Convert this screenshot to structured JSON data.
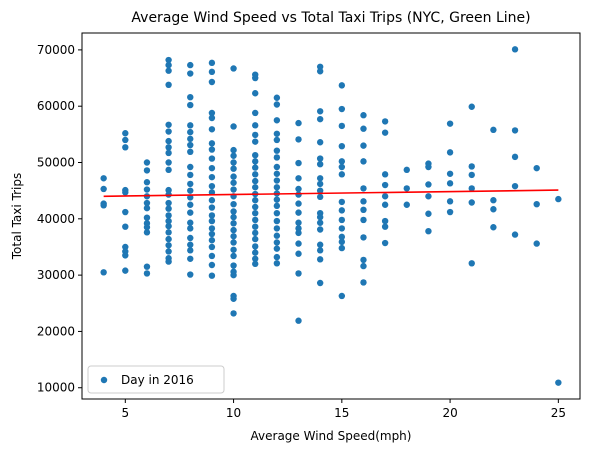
{
  "chart_data": {
    "type": "scatter",
    "title": "Average Wind Speed vs Total Taxi Trips (NYC, Green Line)",
    "xlabel": "Average Wind Speed(mph)",
    "ylabel": "Total Taxi Trips",
    "xlim": [
      3.0,
      26.0
    ],
    "ylim": [
      8000,
      73000
    ],
    "xticks": [
      5,
      10,
      15,
      20,
      25
    ],
    "yticks": [
      10000,
      20000,
      30000,
      40000,
      50000,
      60000,
      70000
    ],
    "xtick_labels": [
      "5",
      "10",
      "15",
      "20",
      "25"
    ],
    "ytick_labels": [
      "10000",
      "20000",
      "30000",
      "40000",
      "50000",
      "60000",
      "70000"
    ],
    "grid": false,
    "legend_position": "lower-left",
    "colors": {
      "points": "#1f77b4",
      "trend": "#ff0000"
    },
    "series": [
      {
        "name": "Day in 2016",
        "points": [
          [
            4,
            47200
          ],
          [
            4,
            45300
          ],
          [
            4,
            42700
          ],
          [
            4,
            42400
          ],
          [
            4,
            30500
          ],
          [
            5,
            55200
          ],
          [
            5,
            54000
          ],
          [
            5,
            52700
          ],
          [
            5,
            45100
          ],
          [
            5,
            44700
          ],
          [
            5,
            41200
          ],
          [
            5,
            38600
          ],
          [
            5,
            35000
          ],
          [
            5,
            34200
          ],
          [
            5,
            33500
          ],
          [
            5,
            30800
          ],
          [
            6,
            50000
          ],
          [
            6,
            48600
          ],
          [
            6,
            46500
          ],
          [
            6,
            45200
          ],
          [
            6,
            44000
          ],
          [
            6,
            42800
          ],
          [
            6,
            41900
          ],
          [
            6,
            40200
          ],
          [
            6,
            39200
          ],
          [
            6,
            38500
          ],
          [
            6,
            37600
          ],
          [
            6,
            31500
          ],
          [
            6,
            30300
          ],
          [
            7,
            68200
          ],
          [
            7,
            67300
          ],
          [
            7,
            66300
          ],
          [
            7,
            63800
          ],
          [
            7,
            56700
          ],
          [
            7,
            55500
          ],
          [
            7,
            53800
          ],
          [
            7,
            52700
          ],
          [
            7,
            51700
          ],
          [
            7,
            50000
          ],
          [
            7,
            48700
          ],
          [
            7,
            45100
          ],
          [
            7,
            44300
          ],
          [
            7,
            42800
          ],
          [
            7,
            41800
          ],
          [
            7,
            40600
          ],
          [
            7,
            39600
          ],
          [
            7,
            38700
          ],
          [
            7,
            37600
          ],
          [
            7,
            36400
          ],
          [
            7,
            35300
          ],
          [
            7,
            34200
          ],
          [
            7,
            33000
          ],
          [
            7,
            32400
          ],
          [
            8,
            67300
          ],
          [
            8,
            65800
          ],
          [
            8,
            61600
          ],
          [
            8,
            60200
          ],
          [
            8,
            56600
          ],
          [
            8,
            55400
          ],
          [
            8,
            54200
          ],
          [
            8,
            53100
          ],
          [
            8,
            51900
          ],
          [
            8,
            49200
          ],
          [
            8,
            47800
          ],
          [
            8,
            46200
          ],
          [
            8,
            45000
          ],
          [
            8,
            43800
          ],
          [
            8,
            42500
          ],
          [
            8,
            41100
          ],
          [
            8,
            39300
          ],
          [
            8,
            38300
          ],
          [
            8,
            36600
          ],
          [
            8,
            35400
          ],
          [
            8,
            34400
          ],
          [
            8,
            32900
          ],
          [
            8,
            30100
          ],
          [
            9,
            67700
          ],
          [
            9,
            66100
          ],
          [
            9,
            64300
          ],
          [
            9,
            58800
          ],
          [
            9,
            57900
          ],
          [
            9,
            55900
          ],
          [
            9,
            53400
          ],
          [
            9,
            52300
          ],
          [
            9,
            50700
          ],
          [
            9,
            49000
          ],
          [
            9,
            47400
          ],
          [
            9,
            45800
          ],
          [
            9,
            44700
          ],
          [
            9,
            43300
          ],
          [
            9,
            42000
          ],
          [
            9,
            40600
          ],
          [
            9,
            39600
          ],
          [
            9,
            38300
          ],
          [
            9,
            37300
          ],
          [
            9,
            36200
          ],
          [
            9,
            35000
          ],
          [
            9,
            33400
          ],
          [
            9,
            31800
          ],
          [
            9,
            29900
          ],
          [
            10,
            66700
          ],
          [
            10,
            56400
          ],
          [
            10,
            52200
          ],
          [
            10,
            51200
          ],
          [
            10,
            50000
          ],
          [
            10,
            48900
          ],
          [
            10,
            47500
          ],
          [
            10,
            46400
          ],
          [
            10,
            45200
          ],
          [
            10,
            44000
          ],
          [
            10,
            42600
          ],
          [
            10,
            41300
          ],
          [
            10,
            40300
          ],
          [
            10,
            39200
          ],
          [
            10,
            38000
          ],
          [
            10,
            36900
          ],
          [
            10,
            35800
          ],
          [
            10,
            34500
          ],
          [
            10,
            33400
          ],
          [
            10,
            31700
          ],
          [
            10,
            30600
          ],
          [
            10,
            30000
          ],
          [
            10,
            26300
          ],
          [
            10,
            25800
          ],
          [
            10,
            23200
          ],
          [
            11,
            65600
          ],
          [
            11,
            65000
          ],
          [
            11,
            62300
          ],
          [
            11,
            58800
          ],
          [
            11,
            56600
          ],
          [
            11,
            54900
          ],
          [
            11,
            53700
          ],
          [
            11,
            51300
          ],
          [
            11,
            50200
          ],
          [
            11,
            49100
          ],
          [
            11,
            47900
          ],
          [
            11,
            46700
          ],
          [
            11,
            45600
          ],
          [
            11,
            44400
          ],
          [
            11,
            43300
          ],
          [
            11,
            42100
          ],
          [
            11,
            41000
          ],
          [
            11,
            39800
          ],
          [
            11,
            38600
          ],
          [
            11,
            37500
          ],
          [
            11,
            36400
          ],
          [
            11,
            35100
          ],
          [
            11,
            34000
          ],
          [
            11,
            32900
          ],
          [
            11,
            32000
          ],
          [
            12,
            61500
          ],
          [
            12,
            60300
          ],
          [
            12,
            57500
          ],
          [
            12,
            55100
          ],
          [
            12,
            54000
          ],
          [
            12,
            52100
          ],
          [
            12,
            50900
          ],
          [
            12,
            49200
          ],
          [
            12,
            48000
          ],
          [
            12,
            46800
          ],
          [
            12,
            45600
          ],
          [
            12,
            44500
          ],
          [
            12,
            43400
          ],
          [
            12,
            42300
          ],
          [
            12,
            41000
          ],
          [
            12,
            39600
          ],
          [
            12,
            38300
          ],
          [
            12,
            37000
          ],
          [
            12,
            35800
          ],
          [
            12,
            34700
          ],
          [
            12,
            33200
          ],
          [
            12,
            32100
          ],
          [
            13,
            57000
          ],
          [
            13,
            54100
          ],
          [
            13,
            49900
          ],
          [
            13,
            47200
          ],
          [
            13,
            45300
          ],
          [
            13,
            44300
          ],
          [
            13,
            42700
          ],
          [
            13,
            41100
          ],
          [
            13,
            39300
          ],
          [
            13,
            38300
          ],
          [
            13,
            37500
          ],
          [
            13,
            35600
          ],
          [
            13,
            33800
          ],
          [
            13,
            30300
          ],
          [
            13,
            21900
          ],
          [
            14,
            67000
          ],
          [
            14,
            66200
          ],
          [
            14,
            59100
          ],
          [
            14,
            57700
          ],
          [
            14,
            53600
          ],
          [
            14,
            50700
          ],
          [
            14,
            49700
          ],
          [
            14,
            47200
          ],
          [
            14,
            46200
          ],
          [
            14,
            45000
          ],
          [
            14,
            43900
          ],
          [
            14,
            41000
          ],
          [
            14,
            40300
          ],
          [
            14,
            39300
          ],
          [
            14,
            38100
          ],
          [
            14,
            35400
          ],
          [
            14,
            34400
          ],
          [
            14,
            32800
          ],
          [
            14,
            28600
          ],
          [
            15,
            63700
          ],
          [
            15,
            59500
          ],
          [
            15,
            56500
          ],
          [
            15,
            52900
          ],
          [
            15,
            50200
          ],
          [
            15,
            49200
          ],
          [
            15,
            47900
          ],
          [
            15,
            43000
          ],
          [
            15,
            41500
          ],
          [
            15,
            39800
          ],
          [
            15,
            38300
          ],
          [
            15,
            36800
          ],
          [
            15,
            35900
          ],
          [
            15,
            34800
          ],
          [
            15,
            26300
          ],
          [
            16,
            58400
          ],
          [
            16,
            56000
          ],
          [
            16,
            53000
          ],
          [
            16,
            50200
          ],
          [
            16,
            45400
          ],
          [
            16,
            43100
          ],
          [
            16,
            41600
          ],
          [
            16,
            39800
          ],
          [
            16,
            36700
          ],
          [
            16,
            32700
          ],
          [
            16,
            31600
          ],
          [
            16,
            28700
          ],
          [
            17,
            57300
          ],
          [
            17,
            55300
          ],
          [
            17,
            47900
          ],
          [
            17,
            46000
          ],
          [
            17,
            44000
          ],
          [
            17,
            42500
          ],
          [
            17,
            39600
          ],
          [
            17,
            38600
          ],
          [
            17,
            35700
          ],
          [
            18,
            48700
          ],
          [
            18,
            45400
          ],
          [
            18,
            42500
          ],
          [
            19,
            49800
          ],
          [
            19,
            49200
          ],
          [
            19,
            46100
          ],
          [
            19,
            44000
          ],
          [
            19,
            40900
          ],
          [
            19,
            37800
          ],
          [
            20,
            56900
          ],
          [
            20,
            51800
          ],
          [
            20,
            48000
          ],
          [
            20,
            46300
          ],
          [
            20,
            43100
          ],
          [
            20,
            41200
          ],
          [
            21,
            59900
          ],
          [
            21,
            49300
          ],
          [
            21,
            47800
          ],
          [
            21,
            45400
          ],
          [
            21,
            42900
          ],
          [
            21,
            32100
          ],
          [
            22,
            55800
          ],
          [
            22,
            43300
          ],
          [
            22,
            41700
          ],
          [
            22,
            38500
          ],
          [
            23,
            70100
          ],
          [
            23,
            55700
          ],
          [
            23,
            51000
          ],
          [
            23,
            45800
          ],
          [
            23,
            37200
          ],
          [
            24,
            49000
          ],
          [
            24,
            42600
          ],
          [
            24,
            35600
          ],
          [
            25,
            43500
          ],
          [
            25,
            10900
          ]
        ]
      }
    ],
    "trend_line": {
      "x": [
        4,
        25
      ],
      "y": [
        44000,
        45100
      ]
    }
  }
}
